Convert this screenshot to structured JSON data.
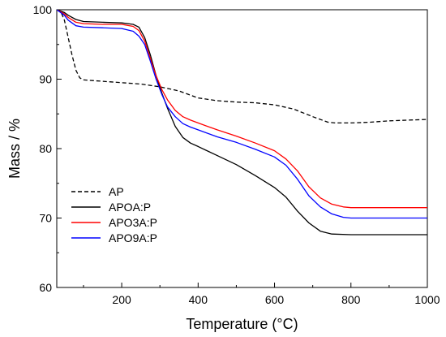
{
  "chart_data": {
    "type": "line",
    "title": "",
    "xlabel": "Temperature (°C)",
    "ylabel": "Mass / %",
    "xlim": [
      30,
      1000
    ],
    "ylim": [
      60,
      100
    ],
    "x_ticks": [
      200,
      400,
      600,
      800,
      1000
    ],
    "y_ticks": [
      60,
      70,
      80,
      90,
      100
    ],
    "grid": false,
    "legend_position": "lower-left",
    "series": [
      {
        "name": "AP",
        "color": "#000000",
        "dash": "dashed",
        "points": [
          [
            30,
            100
          ],
          [
            40,
            99.8
          ],
          [
            50,
            98.5
          ],
          [
            60,
            96
          ],
          [
            70,
            93.5
          ],
          [
            80,
            91.3
          ],
          [
            90,
            90.2
          ],
          [
            100,
            89.9
          ],
          [
            150,
            89.7
          ],
          [
            200,
            89.5
          ],
          [
            250,
            89.3
          ],
          [
            300,
            88.9
          ],
          [
            350,
            88.3
          ],
          [
            400,
            87.3
          ],
          [
            450,
            86.9
          ],
          [
            500,
            86.7
          ],
          [
            550,
            86.6
          ],
          [
            600,
            86.3
          ],
          [
            650,
            85.7
          ],
          [
            700,
            84.6
          ],
          [
            740,
            83.8
          ],
          [
            760,
            83.7
          ],
          [
            800,
            83.7
          ],
          [
            850,
            83.8
          ],
          [
            900,
            84.0
          ],
          [
            950,
            84.1
          ],
          [
            1000,
            84.2
          ]
        ]
      },
      {
        "name": "APOA:P",
        "color": "#000000",
        "dash": "solid",
        "points": [
          [
            30,
            100
          ],
          [
            50,
            99.6
          ],
          [
            60,
            99.2
          ],
          [
            80,
            98.6
          ],
          [
            100,
            98.3
          ],
          [
            150,
            98.2
          ],
          [
            200,
            98.1
          ],
          [
            230,
            97.9
          ],
          [
            245,
            97.5
          ],
          [
            260,
            96
          ],
          [
            275,
            93.5
          ],
          [
            290,
            90.5
          ],
          [
            305,
            88
          ],
          [
            320,
            85.8
          ],
          [
            340,
            83.2
          ],
          [
            360,
            81.6
          ],
          [
            380,
            80.8
          ],
          [
            400,
            80.3
          ],
          [
            450,
            79
          ],
          [
            500,
            77.7
          ],
          [
            550,
            76.1
          ],
          [
            600,
            74.4
          ],
          [
            630,
            73
          ],
          [
            660,
            71
          ],
          [
            690,
            69.3
          ],
          [
            720,
            68.1
          ],
          [
            750,
            67.7
          ],
          [
            800,
            67.6
          ],
          [
            900,
            67.6
          ],
          [
            1000,
            67.6
          ]
        ]
      },
      {
        "name": "APO3A:P",
        "color": "#ff0000",
        "dash": "solid",
        "points": [
          [
            30,
            100
          ],
          [
            50,
            99.4
          ],
          [
            60,
            98.9
          ],
          [
            80,
            98.2
          ],
          [
            100,
            98
          ],
          [
            150,
            97.9
          ],
          [
            200,
            97.9
          ],
          [
            230,
            97.6
          ],
          [
            245,
            97
          ],
          [
            260,
            95.5
          ],
          [
            275,
            93
          ],
          [
            290,
            90.5
          ],
          [
            305,
            88.5
          ],
          [
            320,
            87
          ],
          [
            340,
            85.5
          ],
          [
            360,
            84.6
          ],
          [
            380,
            84.1
          ],
          [
            400,
            83.7
          ],
          [
            450,
            82.7
          ],
          [
            500,
            81.8
          ],
          [
            550,
            80.8
          ],
          [
            600,
            79.7
          ],
          [
            630,
            78.5
          ],
          [
            660,
            76.8
          ],
          [
            690,
            74.5
          ],
          [
            720,
            72.9
          ],
          [
            750,
            72
          ],
          [
            780,
            71.6
          ],
          [
            800,
            71.5
          ],
          [
            900,
            71.5
          ],
          [
            1000,
            71.5
          ]
        ]
      },
      {
        "name": "APO9A:P",
        "color": "#0000ff",
        "dash": "solid",
        "points": [
          [
            30,
            100
          ],
          [
            50,
            99.2
          ],
          [
            60,
            98.5
          ],
          [
            80,
            97.7
          ],
          [
            100,
            97.5
          ],
          [
            150,
            97.4
          ],
          [
            200,
            97.3
          ],
          [
            230,
            96.9
          ],
          [
            245,
            96.2
          ],
          [
            260,
            95
          ],
          [
            275,
            92.6
          ],
          [
            290,
            90
          ],
          [
            305,
            87.8
          ],
          [
            320,
            86
          ],
          [
            340,
            84.6
          ],
          [
            360,
            83.6
          ],
          [
            380,
            83.1
          ],
          [
            400,
            82.7
          ],
          [
            450,
            81.7
          ],
          [
            500,
            80.9
          ],
          [
            550,
            79.9
          ],
          [
            600,
            78.8
          ],
          [
            630,
            77.6
          ],
          [
            660,
            75.6
          ],
          [
            690,
            73.2
          ],
          [
            720,
            71.6
          ],
          [
            750,
            70.6
          ],
          [
            780,
            70.1
          ],
          [
            800,
            70.0
          ],
          [
            900,
            70.0
          ],
          [
            1000,
            70.0
          ]
        ]
      }
    ]
  }
}
